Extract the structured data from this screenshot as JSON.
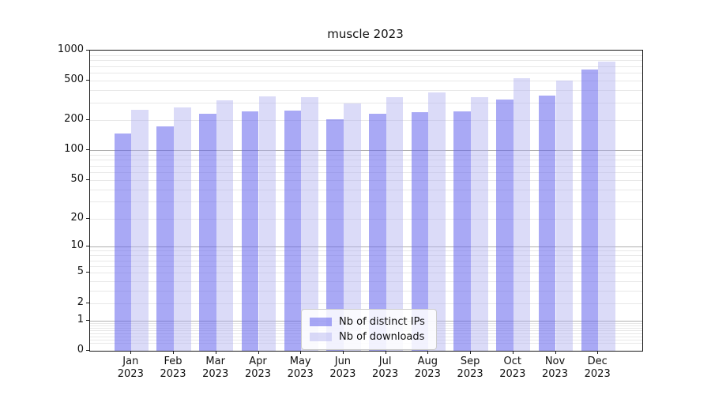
{
  "title": "muscle 2023",
  "chart_data": {
    "type": "bar",
    "title": "muscle 2023",
    "x_categories": [
      "Jan",
      "Feb",
      "Mar",
      "Apr",
      "May",
      "Jun",
      "Jul",
      "Aug",
      "Sep",
      "Oct",
      "Nov",
      "Dec"
    ],
    "x_year": "2023",
    "series": [
      {
        "name": "Nb of distinct IPs",
        "fill": "rgba(99,99,237,0.55)",
        "values": [
          148,
          175,
          235,
          245,
          250,
          205,
          232,
          240,
          245,
          325,
          353,
          650
        ]
      },
      {
        "name": "Nb of downloads",
        "fill": "rgba(175,175,239,0.45)",
        "values": [
          255,
          270,
          320,
          350,
          340,
          295,
          343,
          378,
          343,
          528,
          500,
          770
        ]
      }
    ],
    "yscale": "log1p",
    "ylim": [
      0,
      1000
    ],
    "y_ticks": [
      "1000",
      "500",
      "200",
      "100",
      "50",
      "20",
      "10",
      "5",
      "2",
      "1",
      "0"
    ],
    "y_major_gridlines": [
      1,
      10,
      100
    ],
    "grid": "major+minor",
    "legend_position": "lower-center"
  },
  "legend": {
    "items": [
      {
        "label": "Nb of distinct IPs"
      },
      {
        "label": "Nb of downloads"
      }
    ]
  },
  "colors": {
    "major_grid": "#b0b0b0",
    "minor_grid": "#e8e8e8",
    "spine": "#1a1a1a",
    "bar_distinct_ips": "rgba(99,99,237,0.55)",
    "bar_downloads": "rgba(175,175,239,0.45)"
  }
}
